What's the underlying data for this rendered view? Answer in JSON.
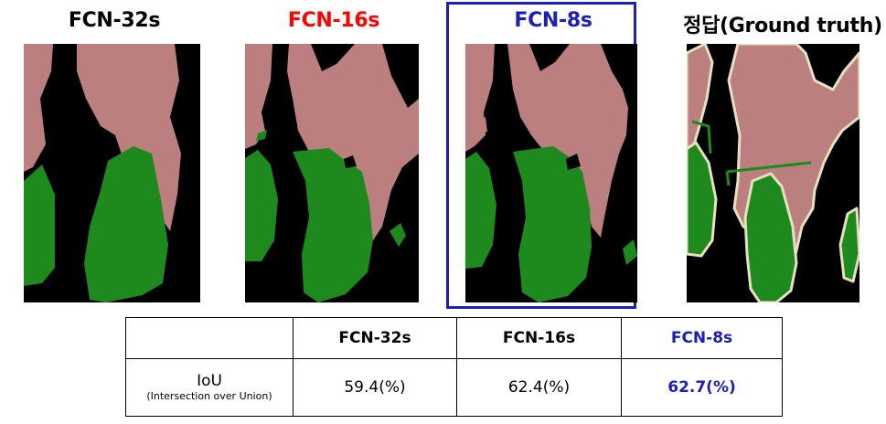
{
  "panels": [
    {
      "title": "FCN-32s",
      "color": "#000000"
    },
    {
      "title": "FCN-16s",
      "color": "#ff0000"
    },
    {
      "title": "FCN-8s",
      "color": "#1a21b4"
    },
    {
      "title": "정답(Ground truth)",
      "color": "#000000"
    }
  ],
  "colors": {
    "person": "#bc7f7f",
    "bicycle": "#1e8a1e",
    "background": "#000000",
    "boundary": "#e6e0c0",
    "highlight": "#1a21b4"
  },
  "table": {
    "headers": [
      "",
      "FCN-32s",
      "FCN-16s",
      "FCN-8s"
    ],
    "metric_name": "IoU",
    "metric_sub": "(Intersection over Union)",
    "values": [
      "59.4(%)",
      "62.4(%)",
      "62.7(%)"
    ]
  }
}
